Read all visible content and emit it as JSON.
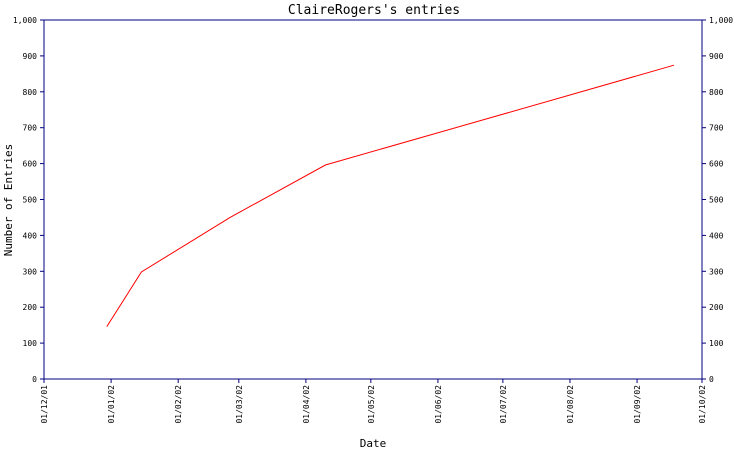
{
  "chart_data": {
    "type": "line",
    "title": "ClaireRogers's entries",
    "xlabel": "Date",
    "ylabel": "Number of Entries",
    "ylim": [
      0,
      1000
    ],
    "yticks": [
      0,
      100,
      200,
      300,
      400,
      500,
      600,
      700,
      800,
      900,
      1000
    ],
    "ytick_labels": [
      "0",
      "100",
      "200",
      "300",
      "400",
      "500",
      "600",
      "700",
      "800",
      "900",
      "1,000"
    ],
    "xlim": [
      "2001-12-01",
      "2002-10-01"
    ],
    "xticks": [
      "2001-12-01",
      "2002-01-01",
      "2002-02-01",
      "2002-03-01",
      "2002-04-01",
      "2002-05-01",
      "2002-06-01",
      "2002-07-01",
      "2002-08-01",
      "2002-09-01",
      "2002-10-01"
    ],
    "xtick_labels": [
      "01/12/01",
      "01/01/02",
      "01/02/02",
      "01/03/02",
      "01/04/02",
      "01/05/02",
      "01/06/02",
      "01/07/02",
      "01/08/02",
      "01/09/02",
      "01/10/02"
    ],
    "grid": false,
    "series": [
      {
        "x": [
          "2001-12-30",
          "2002-01-15",
          "2002-02-25",
          "2002-04-10",
          "2002-09-18"
        ],
        "values": [
          146,
          298,
          450,
          596,
          874
        ]
      }
    ]
  },
  "colors": {
    "axis": "#000080",
    "line": "#ff0000",
    "title": "#000080"
  }
}
